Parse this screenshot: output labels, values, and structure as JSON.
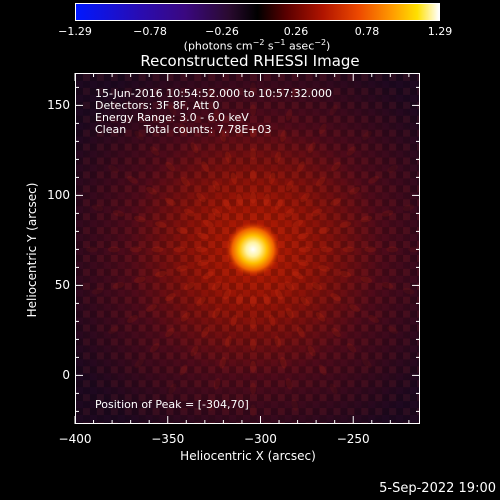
{
  "colorbar": {
    "ticks": [
      "−1.29",
      "−0.78",
      "−0.26",
      "0.26",
      "0.78",
      "1.29"
    ],
    "units_prefix": "(photons cm",
    "units_exp1": "−2",
    "units_mid": " s",
    "units_exp2": "−1",
    "units_mid2": " asec",
    "units_exp3": "−2",
    "units_suffix": ")"
  },
  "plot": {
    "title": "Reconstructed RHESSI Image",
    "info_lines": [
      "15-Jun-2016 10:54:52.000 to 10:57:32.000",
      "Detectors: 3F 8F, Att 0",
      "Energy Range: 3.0 - 6.0 keV",
      "Clean     Total counts: 7.78E+03"
    ],
    "peak_text": "Position of Peak = [-304,70]"
  },
  "chart_data": {
    "type": "heatmap",
    "title": "Reconstructed RHESSI Image",
    "xlabel": "Heliocentric X (arcsec)",
    "ylabel": "Heliocentric Y (arcsec)",
    "xlim": [
      -400,
      -214
    ],
    "ylim": [
      -27,
      168
    ],
    "x_ticks": [
      -400,
      -350,
      -300,
      -250
    ],
    "x_tick_labels": [
      "−400",
      "−350",
      "−300",
      "−250"
    ],
    "y_ticks": [
      0,
      50,
      100,
      150
    ],
    "y_tick_labels": [
      "0",
      "50",
      "100",
      "150"
    ],
    "peak": [
      -304,
      70
    ],
    "color_range": [
      -1.29,
      1.29
    ],
    "colormap": "blue-black-red-yellow-white"
  },
  "footer": {
    "timestamp": "5-Sep-2022 19:00"
  }
}
